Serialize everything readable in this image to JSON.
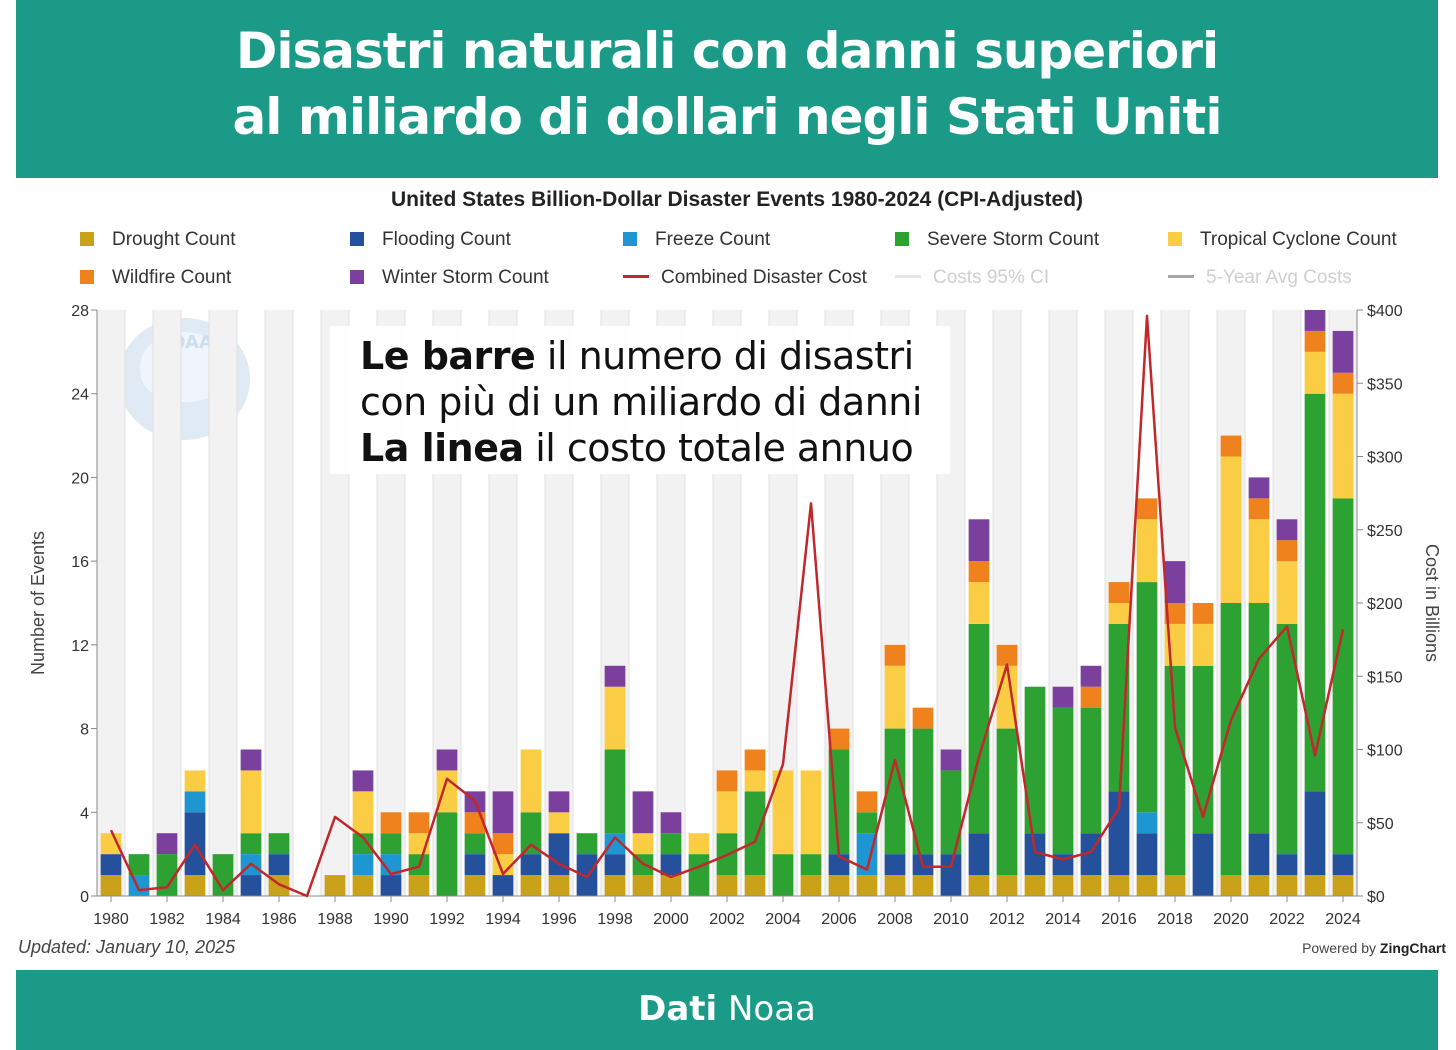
{
  "banner": {
    "title_line1": "Disastri naturali con danni superiori",
    "title_line2": "al miliardo di dollari negli Stati Uniti",
    "source_bold": "Dati",
    "source_rest": "Noaa"
  },
  "annotation": {
    "line1_bold": "Le barre",
    "line1_rest": " il numero di disastri",
    "line2": "con più di un miliardo di danni",
    "line3_bold": "La linea",
    "line3_rest": " il costo totale annuo"
  },
  "logo_text": "NOAA",
  "footer": {
    "updated": "Updated: January 10, 2025",
    "powered_prefix": "Powered by ",
    "powered_brand": "ZingChart"
  },
  "chart_data": {
    "type": "bar",
    "title": "United States Billion-Dollar Disaster Events 1980-2024 (CPI-Adjusted)",
    "ylabel": "Number of Events",
    "y2label": "Cost in Billions",
    "ylim": [
      0,
      28
    ],
    "y2lim": [
      0,
      400
    ],
    "yticks": [
      0,
      4,
      8,
      12,
      16,
      20,
      24,
      28
    ],
    "y2ticks": [
      "$0",
      "$50",
      "$100",
      "$150",
      "$200",
      "$250",
      "$300",
      "$350",
      "$400"
    ],
    "xticks": [
      "1980",
      "1982",
      "1984",
      "1986",
      "1988",
      "1990",
      "1992",
      "1994",
      "1996",
      "1998",
      "2000",
      "2002",
      "2004",
      "2006",
      "2008",
      "2010",
      "2012",
      "2014",
      "2016",
      "2018",
      "2020",
      "2022",
      "2024"
    ],
    "years": [
      1980,
      1981,
      1982,
      1983,
      1984,
      1985,
      1986,
      1987,
      1988,
      1989,
      1990,
      1991,
      1992,
      1993,
      1994,
      1995,
      1996,
      1997,
      1998,
      1999,
      2000,
      2001,
      2002,
      2003,
      2004,
      2005,
      2006,
      2007,
      2008,
      2009,
      2010,
      2011,
      2012,
      2013,
      2014,
      2015,
      2016,
      2017,
      2018,
      2019,
      2020,
      2021,
      2022,
      2023,
      2024
    ],
    "stacked": true,
    "series": [
      {
        "name": "Drought Count",
        "color": "#c9a21a",
        "values": [
          1,
          0,
          0,
          1,
          0,
          0,
          1,
          0,
          1,
          1,
          0,
          1,
          0,
          1,
          0,
          1,
          1,
          0,
          1,
          1,
          1,
          0,
          1,
          1,
          0,
          1,
          1,
          1,
          1,
          1,
          0,
          1,
          1,
          1,
          1,
          1,
          1,
          1,
          1,
          0,
          1,
          1,
          1,
          1,
          1
        ]
      },
      {
        "name": "Flooding Count",
        "color": "#24509c",
        "values": [
          1,
          0,
          0,
          3,
          0,
          1,
          1,
          0,
          0,
          0,
          1,
          0,
          0,
          1,
          1,
          1,
          2,
          2,
          1,
          0,
          1,
          0,
          0,
          0,
          0,
          0,
          1,
          0,
          1,
          1,
          2,
          2,
          0,
          2,
          1,
          2,
          4,
          2,
          0,
          3,
          0,
          2,
          1,
          4,
          1
        ]
      },
      {
        "name": "Freeze Count",
        "color": "#1e96d2",
        "values": [
          0,
          1,
          0,
          1,
          0,
          1,
          0,
          0,
          0,
          1,
          1,
          0,
          0,
          0,
          0,
          0,
          0,
          0,
          1,
          0,
          0,
          0,
          0,
          0,
          0,
          0,
          0,
          2,
          0,
          0,
          0,
          0,
          0,
          0,
          0,
          0,
          0,
          1,
          0,
          0,
          0,
          0,
          0,
          0,
          0
        ]
      },
      {
        "name": "Severe Storm Count",
        "color": "#2ea133",
        "values": [
          0,
          1,
          2,
          0,
          2,
          1,
          1,
          0,
          0,
          1,
          1,
          1,
          4,
          1,
          0,
          2,
          0,
          1,
          4,
          1,
          1,
          2,
          2,
          4,
          2,
          1,
          5,
          1,
          6,
          6,
          4,
          10,
          7,
          7,
          7,
          6,
          8,
          11,
          10,
          8,
          13,
          11,
          11,
          19,
          17
        ]
      },
      {
        "name": "Tropical Cyclone Count",
        "color": "#fbcd45",
        "values": [
          1,
          0,
          0,
          1,
          0,
          3,
          0,
          0,
          0,
          2,
          0,
          1,
          2,
          0,
          1,
          3,
          1,
          0,
          3,
          1,
          0,
          1,
          2,
          1,
          4,
          4,
          0,
          0,
          3,
          0,
          0,
          2,
          3,
          0,
          0,
          0,
          1,
          3,
          2,
          2,
          7,
          4,
          3,
          2,
          5
        ]
      },
      {
        "name": "Wildfire Count",
        "color": "#f0821e",
        "values": [
          0,
          0,
          0,
          0,
          0,
          0,
          0,
          0,
          0,
          0,
          1,
          1,
          0,
          1,
          1,
          0,
          0,
          0,
          0,
          0,
          0,
          0,
          1,
          1,
          0,
          0,
          1,
          1,
          1,
          1,
          0,
          1,
          1,
          0,
          0,
          1,
          1,
          1,
          1,
          1,
          1,
          1,
          1,
          1,
          1
        ]
      },
      {
        "name": "Winter Storm Count",
        "color": "#7b3f9e",
        "values": [
          0,
          0,
          1,
          0,
          0,
          1,
          0,
          0,
          0,
          1,
          0,
          0,
          1,
          1,
          2,
          0,
          1,
          0,
          1,
          2,
          1,
          0,
          0,
          0,
          0,
          0,
          0,
          0,
          0,
          0,
          1,
          2,
          0,
          0,
          1,
          1,
          0,
          0,
          2,
          0,
          0,
          1,
          1,
          1,
          2
        ]
      }
    ],
    "line": {
      "name": "Combined Disaster Cost",
      "color": "#c0282b",
      "values": [
        45,
        4,
        6,
        35,
        4,
        22,
        8,
        0,
        54,
        40,
        15,
        20,
        80,
        65,
        15,
        35,
        22,
        13,
        40,
        22,
        13,
        20,
        28,
        37,
        90,
        268,
        27,
        18,
        93,
        20,
        20,
        95,
        158,
        30,
        25,
        30,
        60,
        396,
        115,
        54,
        120,
        162,
        184,
        96,
        182
      ]
    },
    "legend": [
      {
        "name": "Drought Count",
        "kind": "square",
        "color": "#c9a21a"
      },
      {
        "name": "Flooding Count",
        "kind": "square",
        "color": "#24509c"
      },
      {
        "name": "Freeze Count",
        "kind": "square",
        "color": "#1e96d2"
      },
      {
        "name": "Severe Storm Count",
        "kind": "square",
        "color": "#2ea133"
      },
      {
        "name": "Tropical Cyclone Count",
        "kind": "square",
        "color": "#fbcd45"
      },
      {
        "name": "Wildfire Count",
        "kind": "square",
        "color": "#f0821e"
      },
      {
        "name": "Winter Storm Count",
        "kind": "square",
        "color": "#7b3f9e"
      },
      {
        "name": "Combined Disaster Cost",
        "kind": "line",
        "color": "#c0282b"
      },
      {
        "name": "Costs 95% CI",
        "kind": "line",
        "color": "#e6e6e6",
        "faded": true
      },
      {
        "name": "5-Year Avg Costs",
        "kind": "line",
        "color": "#a6a6a6",
        "faded": true
      }
    ],
    "legend_position": "top"
  }
}
